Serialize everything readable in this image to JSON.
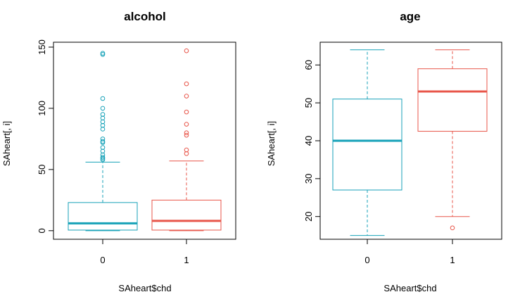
{
  "chart_data": [
    {
      "type": "boxplot",
      "title": "alcohol",
      "xlabel": "SAheart$chd",
      "ylabel": "SAheart[, i]",
      "categories": [
        "0",
        "1"
      ],
      "ylim": [
        -7,
        154
      ],
      "yticks": [
        0,
        50,
        100,
        150
      ],
      "grid": false,
      "boxes": [
        {
          "category": "0",
          "color": "#17A2B8",
          "min": 0,
          "q1": 0.5,
          "median": 6,
          "q3": 23,
          "max": 56,
          "outliers": [
            58,
            59,
            60,
            62,
            65,
            68,
            72,
            73,
            75,
            83,
            86,
            89,
            92,
            95,
            100,
            108,
            144,
            145
          ]
        },
        {
          "category": "1",
          "color": "#E8564A",
          "min": 0,
          "q1": 0.5,
          "median": 8,
          "q3": 25,
          "max": 57,
          "outliers": [
            63,
            66,
            78,
            80,
            87,
            97,
            110,
            120,
            147
          ]
        }
      ]
    },
    {
      "type": "boxplot",
      "title": "age",
      "xlabel": "SAheart$chd",
      "ylabel": "SAheart[, i]",
      "categories": [
        "0",
        "1"
      ],
      "ylim": [
        14,
        66
      ],
      "yticks": [
        20,
        30,
        40,
        50,
        60
      ],
      "grid": false,
      "boxes": [
        {
          "category": "0",
          "color": "#17A2B8",
          "min": 15,
          "q1": 27,
          "median": 40,
          "q3": 51,
          "max": 64,
          "outliers": []
        },
        {
          "category": "1",
          "color": "#E8564A",
          "min": 20,
          "q1": 42.5,
          "median": 53,
          "q3": 59,
          "max": 64,
          "outliers": [
            17
          ]
        }
      ]
    }
  ]
}
